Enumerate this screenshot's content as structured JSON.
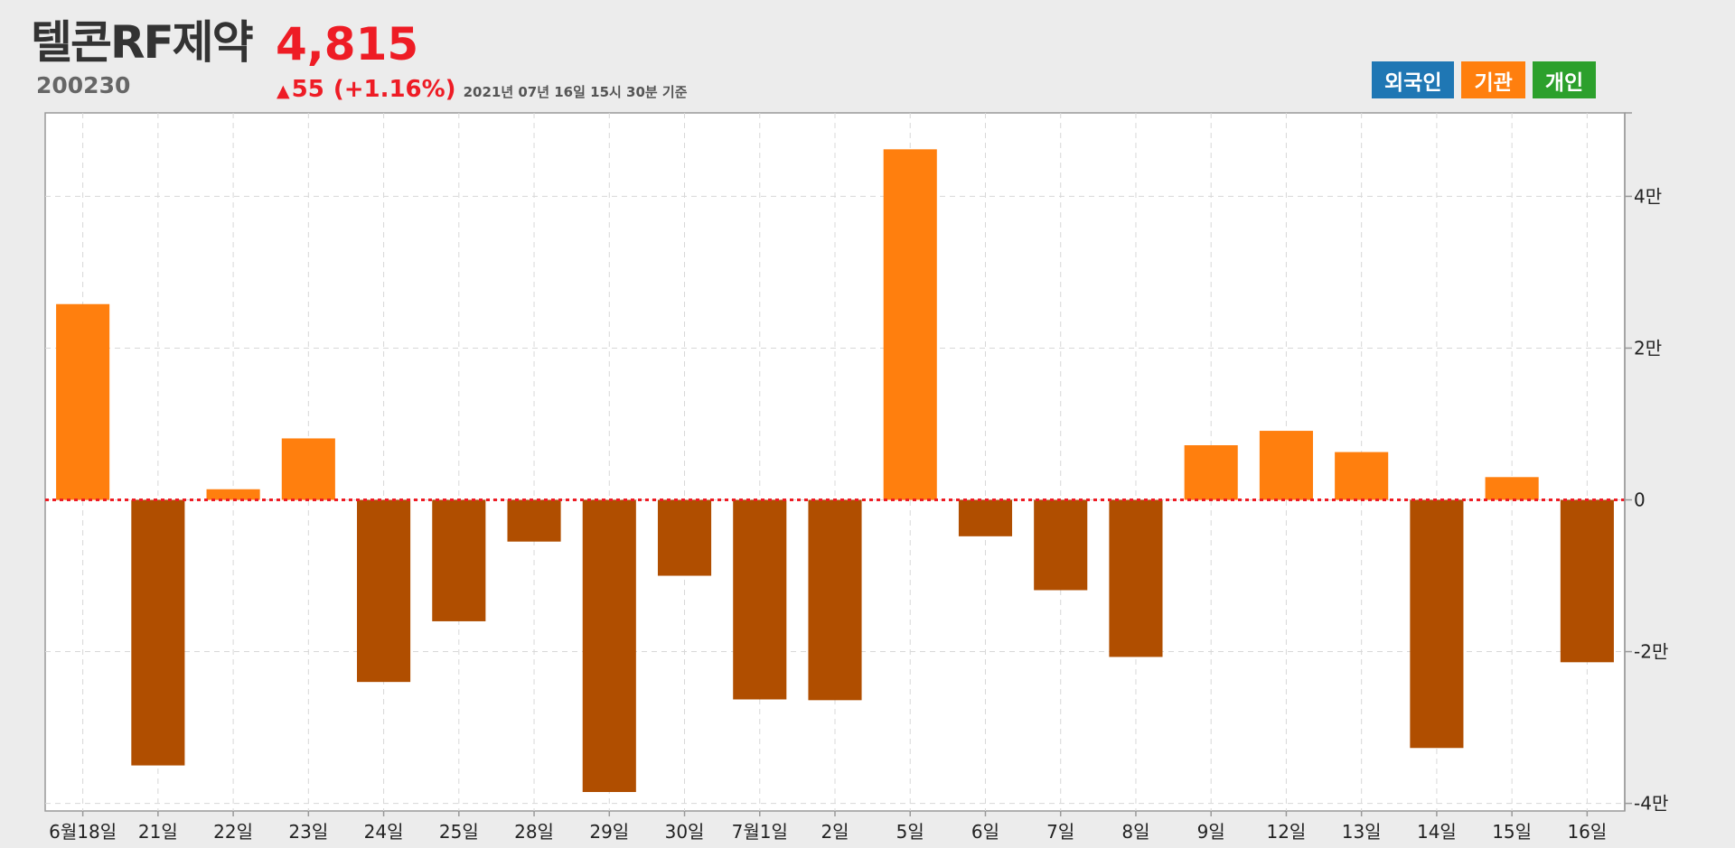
{
  "stock": {
    "name": "텔콘RF제약",
    "code": "200230",
    "price": "4,815",
    "change_arrow": "▲",
    "change": "55",
    "change_pct": "(+1.16%)",
    "as_of": "2021년 07년 16일 15시 30분 기준"
  },
  "legend": {
    "foreign": {
      "label": "외국인",
      "color": "#1f77b4"
    },
    "institution": {
      "label": "기관",
      "color": "#ff7f0e"
    },
    "individual": {
      "label": "개인",
      "color": "#2ca02c"
    }
  },
  "chart_data": {
    "type": "bar",
    "title": "",
    "xlabel": "",
    "ylabel": "",
    "categories": [
      "6월18일",
      "21일",
      "22일",
      "23일",
      "24일",
      "25일",
      "28일",
      "29일",
      "30일",
      "7월1일",
      "2일",
      "5일",
      "6일",
      "7일",
      "8일",
      "9일",
      "12일",
      "13일",
      "14일",
      "15일",
      "16일"
    ],
    "series": [
      {
        "values": [
          25800,
          -35000,
          1400,
          8100,
          -24000,
          -16000,
          -5500,
          -38500,
          -10000,
          -26300,
          -26400,
          46200,
          -4800,
          -11900,
          -20700,
          7200,
          9100,
          6300,
          -32700,
          3000,
          -21400
        ]
      }
    ],
    "positive_color": "#ff7f0e",
    "negative_color": "#b04e00",
    "ylim": [
      -41000,
      51000
    ],
    "yticks": [
      -40000,
      -20000,
      0,
      20000,
      40000
    ],
    "ytick_labels": [
      "-4만",
      "-2만",
      "0",
      "2만",
      "4만"
    ],
    "grid": true,
    "zero_line_color": "#ee1c25"
  }
}
